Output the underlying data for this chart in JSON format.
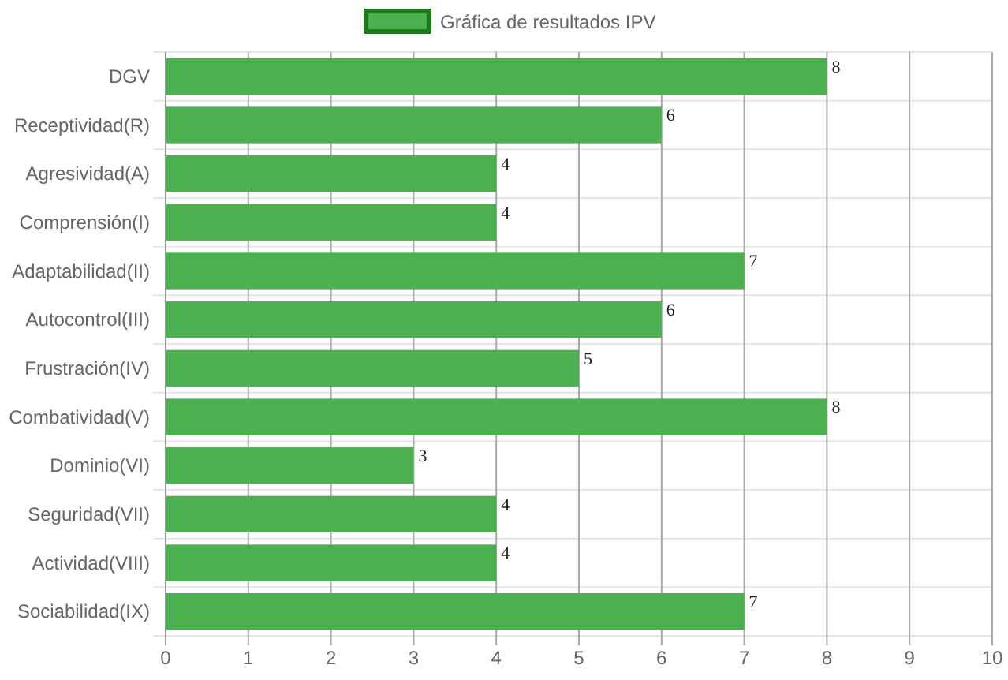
{
  "chart_data": {
    "type": "bar",
    "orientation": "horizontal",
    "categories": [
      "DGV",
      "Receptividad(R)",
      "Agresividad(A)",
      "Comprensión(I)",
      "Adaptabilidad(II)",
      "Autocontrol(III)",
      "Frustración(IV)",
      "Combatividad(V)",
      "Dominio(VI)",
      "Seguridad(VII)",
      "Actividad(VIII)",
      "Sociabilidad(IX)"
    ],
    "series": [
      {
        "name": "Gráfica de resultados IPV",
        "color": "#4caf50",
        "values": [
          8,
          6,
          4,
          4,
          7,
          6,
          5,
          8,
          3,
          4,
          4,
          7
        ]
      }
    ],
    "xlim": [
      0,
      10
    ],
    "xticks": [
      0,
      1,
      2,
      3,
      4,
      5,
      6,
      7,
      8,
      9,
      10
    ],
    "grid": true,
    "legend": "top",
    "data_labels": true
  }
}
